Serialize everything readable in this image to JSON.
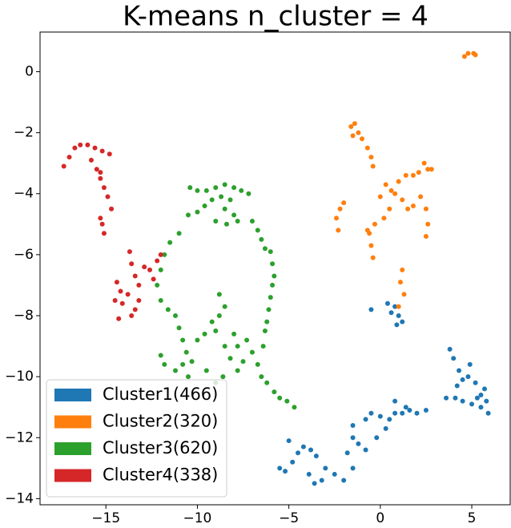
{
  "chart_data": {
    "type": "scatter",
    "title": "K-means n_cluster = 4",
    "xlim": [
      -18.6,
      7.1
    ],
    "ylim": [
      -14.2,
      1.3
    ],
    "xticks": [
      {
        "value": -15,
        "label": "−15"
      },
      {
        "value": -10,
        "label": "−10"
      },
      {
        "value": -5,
        "label": "−5"
      },
      0,
      5
    ],
    "yticks": [
      {
        "value": -14,
        "label": "−14"
      },
      {
        "value": -12,
        "label": "−12"
      },
      {
        "value": -10,
        "label": "−10"
      },
      {
        "value": -8,
        "label": "−8"
      },
      {
        "value": -6,
        "label": "−6"
      },
      {
        "value": -4,
        "label": "−4"
      },
      {
        "value": -2,
        "label": "−2"
      },
      0
    ],
    "legend": "lower left",
    "series": [
      {
        "name": "Cluster1(466)",
        "color": "#1f77b4",
        "x": [
          -0.5,
          0.4,
          0.8,
          1.0,
          1.2,
          0.9,
          0.6,
          3.8,
          4.0,
          4.3,
          4.2,
          4.5,
          4.8,
          5.2,
          5.5,
          5.8,
          5.5,
          5.9,
          4.5,
          4.1,
          3.6,
          5.0,
          5.3,
          5.7,
          4.9,
          -5.5,
          -5.2,
          -4.8,
          -4.5,
          -5.0,
          -4.2,
          -3.8,
          -3.5,
          -3.9,
          -3.6,
          -3.2,
          -3.0,
          -2.5,
          -2.0,
          -1.5,
          -1.8,
          -1.5,
          -1.2,
          -1.5,
          -0.8,
          -0.5,
          0,
          0.5,
          0.8,
          0.3,
          -0.2,
          -0.8,
          0.8,
          1.2,
          1.6,
          2.0,
          2.5,
          1.4
        ],
        "y": [
          -7.8,
          -7.6,
          -7.7,
          -8.0,
          -8.2,
          -8.3,
          -7.9,
          -9.1,
          -9.4,
          -9.8,
          -10.3,
          -10.1,
          -10.0,
          -10.2,
          -10.6,
          -10.8,
          -11.0,
          -11.2,
          -10.8,
          -10.7,
          -10.7,
          -10.9,
          -10.7,
          -10.4,
          -9.6,
          -13.0,
          -13.1,
          -12.8,
          -12.5,
          -12.1,
          -12.3,
          -12.4,
          -12.6,
          -13.2,
          -13.5,
          -13.4,
          -13.0,
          -13.2,
          -13.4,
          -13.0,
          -12.5,
          -12.0,
          -12.2,
          -11.6,
          -11.4,
          -11.2,
          -11.3,
          -11.4,
          -11.2,
          -11.7,
          -12.0,
          -12.4,
          -10.8,
          -11.2,
          -11.1,
          -11.2,
          -11.1,
          -11.0
        ]
      },
      {
        "name": "Cluster2(320)",
        "color": "#ff7f0e",
        "x": [
          4.6,
          4.8,
          5.1,
          5.2,
          -1.6,
          -1.4,
          -1.2,
          -1.0,
          -0.7,
          -0.5,
          -0.4,
          -1.5,
          0.3,
          0.6,
          1.0,
          1.4,
          1.8,
          2.1,
          2.4,
          2.6,
          2.8,
          0.8,
          1.2,
          1.5,
          1.8,
          2.2,
          2.5,
          2.6,
          2.5,
          0,
          0.5,
          0.2,
          -0.3,
          -0.6,
          -0.5,
          -0.4,
          -0.7,
          -2.4,
          -2.2,
          -2.0,
          -2.3,
          1.2,
          1.1,
          1.3,
          1.0
        ],
        "y": [
          0.5,
          0.6,
          0.6,
          0.55,
          -1.8,
          -1.7,
          -2.0,
          -2.2,
          -2.5,
          -2.8,
          -3.1,
          -2.1,
          -3.7,
          -3.9,
          -3.6,
          -3.4,
          -3.4,
          -3.3,
          -3.0,
          -3.2,
          -3.2,
          -4.0,
          -4.2,
          -4.5,
          -4.4,
          -4.1,
          -4.5,
          -5.0,
          -5.4,
          -4.1,
          -4.5,
          -4.8,
          -5.0,
          -5.3,
          -5.7,
          -6.1,
          -5.2,
          -4.8,
          -4.5,
          -4.3,
          -5.2,
          -6.5,
          -6.9,
          -7.3,
          -7.7
        ]
      },
      {
        "name": "Cluster3(620)",
        "color": "#2ca02c",
        "x": [
          -10.4,
          -10.0,
          -9.5,
          -9.0,
          -8.5,
          -8.0,
          -7.6,
          -7.2,
          -8.2,
          -8.7,
          -9.2,
          -9.6,
          -10.0,
          -10.5,
          -8.5,
          -8.0,
          -7.8,
          -8.4,
          -9.0,
          -7.0,
          -6.7,
          -6.5,
          -6.3,
          -6.0,
          -5.9,
          -5.8,
          -5.9,
          -6.0,
          -6.1,
          -6.2,
          -11.0,
          -11.5,
          -11.8,
          -12.0,
          -12.2,
          -12.0,
          -11.6,
          -11.2,
          -11.0,
          -10.8,
          -10.6,
          -10.8,
          -11.2,
          -11.8,
          -12.0,
          -10.5,
          -10.3,
          -10.0,
          -9.6,
          -9.2,
          -8.8,
          -8.5,
          -8.8,
          -9.0,
          -8.5,
          -8.2,
          -7.8,
          -7.5,
          -7.8,
          -8.0,
          -9.5,
          -9.0,
          -8.6,
          -7.3,
          -7.0,
          -6.7,
          -6.5,
          -6.2,
          -5.8,
          -5.5,
          -5.1,
          -4.7,
          -6.4,
          -6.3
        ],
        "y": [
          -3.8,
          -3.9,
          -3.9,
          -3.8,
          -3.7,
          -3.8,
          -3.9,
          -4.0,
          -4.2,
          -4.1,
          -4.2,
          -4.4,
          -4.6,
          -4.7,
          -4.5,
          -4.7,
          -4.9,
          -5.0,
          -4.9,
          -4.9,
          -5.2,
          -5.5,
          -5.8,
          -5.9,
          -6.3,
          -6.7,
          -7.0,
          -7.4,
          -7.8,
          -8.2,
          -5.3,
          -5.6,
          -6.0,
          -6.5,
          -7.0,
          -7.5,
          -7.8,
          -8.0,
          -8.4,
          -8.8,
          -9.2,
          -9.6,
          -9.8,
          -9.6,
          -9.3,
          -10.0,
          -9.5,
          -8.8,
          -8.6,
          -8.2,
          -8.0,
          -7.7,
          -7.3,
          -8.5,
          -9.0,
          -9.4,
          -9.8,
          -9.5,
          -9.0,
          -8.6,
          -9.8,
          -10.2,
          -10.0,
          -8.8,
          -9.2,
          -9.6,
          -10.0,
          -10.2,
          -10.5,
          -10.7,
          -10.8,
          -11.0,
          -9.0,
          -8.5
        ]
      },
      {
        "name": "Cluster4(338)",
        "color": "#d62728",
        "x": [
          -17.3,
          -17.0,
          -16.7,
          -16.4,
          -16.0,
          -15.6,
          -15.2,
          -14.8,
          -15.8,
          -15.5,
          -15.3,
          -15.1,
          -15.3,
          -14.9,
          -14.7,
          -15.2,
          -15.1,
          -15.3,
          -13.7,
          -13.6,
          -13.4,
          -13.2,
          -12.9,
          -12.6,
          -12.2,
          -12.0,
          -12.4,
          -14.4,
          -14.2,
          -14.5,
          -14.1,
          -13.8,
          -13.4,
          -13.2,
          -14.3,
          -13.6
        ],
        "y": [
          -3.1,
          -2.8,
          -2.5,
          -2.4,
          -2.4,
          -2.5,
          -2.6,
          -2.7,
          -2.9,
          -3.2,
          -3.5,
          -3.8,
          -3.3,
          -4.1,
          -4.5,
          -5.0,
          -5.3,
          -4.8,
          -5.9,
          -6.3,
          -6.7,
          -7.0,
          -6.4,
          -6.5,
          -6.2,
          -6.0,
          -6.8,
          -6.9,
          -7.2,
          -7.5,
          -7.6,
          -7.3,
          -7.8,
          -7.5,
          -8.1,
          -8.0
        ]
      }
    ]
  }
}
